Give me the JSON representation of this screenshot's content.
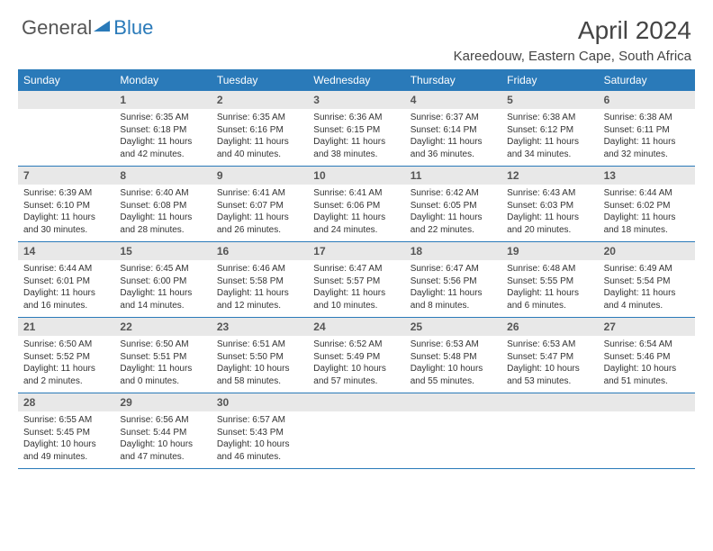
{
  "logo": {
    "text1": "General",
    "text2": "Blue"
  },
  "title": "April 2024",
  "location": "Kareedouw, Eastern Cape, South Africa",
  "colors": {
    "header_bg": "#2a7ab9",
    "daynum_bg": "#e8e8e8",
    "week_border": "#2a7ab9",
    "text": "#333333"
  },
  "day_names": [
    "Sunday",
    "Monday",
    "Tuesday",
    "Wednesday",
    "Thursday",
    "Friday",
    "Saturday"
  ],
  "weeks": [
    [
      {
        "n": "",
        "sr": "",
        "ss": "",
        "dl": ""
      },
      {
        "n": "1",
        "sr": "Sunrise: 6:35 AM",
        "ss": "Sunset: 6:18 PM",
        "dl": "Daylight: 11 hours and 42 minutes."
      },
      {
        "n": "2",
        "sr": "Sunrise: 6:35 AM",
        "ss": "Sunset: 6:16 PM",
        "dl": "Daylight: 11 hours and 40 minutes."
      },
      {
        "n": "3",
        "sr": "Sunrise: 6:36 AM",
        "ss": "Sunset: 6:15 PM",
        "dl": "Daylight: 11 hours and 38 minutes."
      },
      {
        "n": "4",
        "sr": "Sunrise: 6:37 AM",
        "ss": "Sunset: 6:14 PM",
        "dl": "Daylight: 11 hours and 36 minutes."
      },
      {
        "n": "5",
        "sr": "Sunrise: 6:38 AM",
        "ss": "Sunset: 6:12 PM",
        "dl": "Daylight: 11 hours and 34 minutes."
      },
      {
        "n": "6",
        "sr": "Sunrise: 6:38 AM",
        "ss": "Sunset: 6:11 PM",
        "dl": "Daylight: 11 hours and 32 minutes."
      }
    ],
    [
      {
        "n": "7",
        "sr": "Sunrise: 6:39 AM",
        "ss": "Sunset: 6:10 PM",
        "dl": "Daylight: 11 hours and 30 minutes."
      },
      {
        "n": "8",
        "sr": "Sunrise: 6:40 AM",
        "ss": "Sunset: 6:08 PM",
        "dl": "Daylight: 11 hours and 28 minutes."
      },
      {
        "n": "9",
        "sr": "Sunrise: 6:41 AM",
        "ss": "Sunset: 6:07 PM",
        "dl": "Daylight: 11 hours and 26 minutes."
      },
      {
        "n": "10",
        "sr": "Sunrise: 6:41 AM",
        "ss": "Sunset: 6:06 PM",
        "dl": "Daylight: 11 hours and 24 minutes."
      },
      {
        "n": "11",
        "sr": "Sunrise: 6:42 AM",
        "ss": "Sunset: 6:05 PM",
        "dl": "Daylight: 11 hours and 22 minutes."
      },
      {
        "n": "12",
        "sr": "Sunrise: 6:43 AM",
        "ss": "Sunset: 6:03 PM",
        "dl": "Daylight: 11 hours and 20 minutes."
      },
      {
        "n": "13",
        "sr": "Sunrise: 6:44 AM",
        "ss": "Sunset: 6:02 PM",
        "dl": "Daylight: 11 hours and 18 minutes."
      }
    ],
    [
      {
        "n": "14",
        "sr": "Sunrise: 6:44 AM",
        "ss": "Sunset: 6:01 PM",
        "dl": "Daylight: 11 hours and 16 minutes."
      },
      {
        "n": "15",
        "sr": "Sunrise: 6:45 AM",
        "ss": "Sunset: 6:00 PM",
        "dl": "Daylight: 11 hours and 14 minutes."
      },
      {
        "n": "16",
        "sr": "Sunrise: 6:46 AM",
        "ss": "Sunset: 5:58 PM",
        "dl": "Daylight: 11 hours and 12 minutes."
      },
      {
        "n": "17",
        "sr": "Sunrise: 6:47 AM",
        "ss": "Sunset: 5:57 PM",
        "dl": "Daylight: 11 hours and 10 minutes."
      },
      {
        "n": "18",
        "sr": "Sunrise: 6:47 AM",
        "ss": "Sunset: 5:56 PM",
        "dl": "Daylight: 11 hours and 8 minutes."
      },
      {
        "n": "19",
        "sr": "Sunrise: 6:48 AM",
        "ss": "Sunset: 5:55 PM",
        "dl": "Daylight: 11 hours and 6 minutes."
      },
      {
        "n": "20",
        "sr": "Sunrise: 6:49 AM",
        "ss": "Sunset: 5:54 PM",
        "dl": "Daylight: 11 hours and 4 minutes."
      }
    ],
    [
      {
        "n": "21",
        "sr": "Sunrise: 6:50 AM",
        "ss": "Sunset: 5:52 PM",
        "dl": "Daylight: 11 hours and 2 minutes."
      },
      {
        "n": "22",
        "sr": "Sunrise: 6:50 AM",
        "ss": "Sunset: 5:51 PM",
        "dl": "Daylight: 11 hours and 0 minutes."
      },
      {
        "n": "23",
        "sr": "Sunrise: 6:51 AM",
        "ss": "Sunset: 5:50 PM",
        "dl": "Daylight: 10 hours and 58 minutes."
      },
      {
        "n": "24",
        "sr": "Sunrise: 6:52 AM",
        "ss": "Sunset: 5:49 PM",
        "dl": "Daylight: 10 hours and 57 minutes."
      },
      {
        "n": "25",
        "sr": "Sunrise: 6:53 AM",
        "ss": "Sunset: 5:48 PM",
        "dl": "Daylight: 10 hours and 55 minutes."
      },
      {
        "n": "26",
        "sr": "Sunrise: 6:53 AM",
        "ss": "Sunset: 5:47 PM",
        "dl": "Daylight: 10 hours and 53 minutes."
      },
      {
        "n": "27",
        "sr": "Sunrise: 6:54 AM",
        "ss": "Sunset: 5:46 PM",
        "dl": "Daylight: 10 hours and 51 minutes."
      }
    ],
    [
      {
        "n": "28",
        "sr": "Sunrise: 6:55 AM",
        "ss": "Sunset: 5:45 PM",
        "dl": "Daylight: 10 hours and 49 minutes."
      },
      {
        "n": "29",
        "sr": "Sunrise: 6:56 AM",
        "ss": "Sunset: 5:44 PM",
        "dl": "Daylight: 10 hours and 47 minutes."
      },
      {
        "n": "30",
        "sr": "Sunrise: 6:57 AM",
        "ss": "Sunset: 5:43 PM",
        "dl": "Daylight: 10 hours and 46 minutes."
      },
      {
        "n": "",
        "sr": "",
        "ss": "",
        "dl": ""
      },
      {
        "n": "",
        "sr": "",
        "ss": "",
        "dl": ""
      },
      {
        "n": "",
        "sr": "",
        "ss": "",
        "dl": ""
      },
      {
        "n": "",
        "sr": "",
        "ss": "",
        "dl": ""
      }
    ]
  ]
}
